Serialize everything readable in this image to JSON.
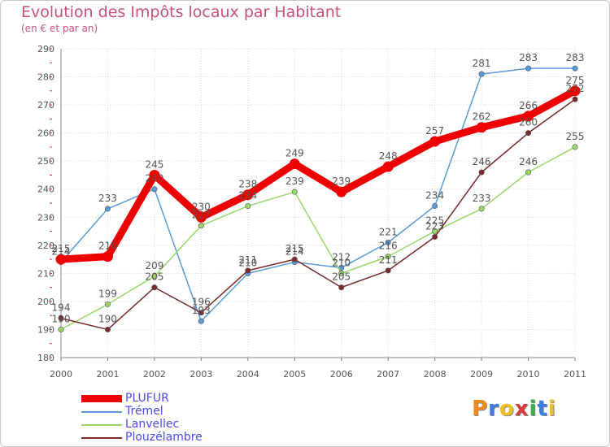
{
  "title": "Evolution des Impôts locaux par Habitant",
  "subtitle": "(en € et par an)",
  "logo": {
    "text": "Proxiti",
    "letter_colors": [
      "#f08a1c",
      "#3a7de0",
      "#f0c020",
      "#e03a3a",
      "#3ab04a",
      "#3a7de0",
      "#f0c020"
    ]
  },
  "chart_data": {
    "type": "line",
    "title": "Evolution des Impôts locaux par Habitant",
    "subtitle": "(en € et par an)",
    "xlabel": "",
    "ylabel": "",
    "x": [
      "2000",
      "2001",
      "2002",
      "2003",
      "2004",
      "2005",
      "2006",
      "2007",
      "2008",
      "2009",
      "2010",
      "2011"
    ],
    "ylim": [
      180,
      290
    ],
    "yticks": [
      "180",
      "190",
      "200",
      "210",
      "220",
      "230",
      "240",
      "250",
      "260",
      "270",
      "280",
      "290"
    ],
    "grid": true,
    "legend_position": "bottom-left",
    "series": [
      {
        "name": "PLUFUR",
        "color": "#ee0000",
        "values": [
          215,
          216,
          245,
          230,
          238,
          249,
          239,
          248,
          257,
          262,
          266,
          275
        ],
        "labels": [
          "215",
          "216",
          "245",
          "230",
          "238",
          "249",
          "239",
          "248",
          "257",
          "262",
          "266",
          "275"
        ]
      },
      {
        "name": "Trémel",
        "color": "#5a9ad8",
        "values": [
          214,
          233,
          240,
          193,
          210,
          214,
          212,
          221,
          234,
          281,
          283,
          283
        ],
        "labels": [
          "214",
          "233",
          "240",
          "193",
          "210",
          "214",
          "212",
          "221",
          "234",
          "281",
          "283",
          "283"
        ]
      },
      {
        "name": "Lanvellec",
        "color": "#9ad86a",
        "values": [
          190,
          199,
          209,
          227,
          234,
          239,
          210,
          216,
          225,
          233,
          246,
          255
        ],
        "labels": [
          "190",
          "199",
          "209",
          "227",
          "234",
          "239",
          "210",
          "216",
          "225",
          "233",
          "246",
          "255"
        ]
      },
      {
        "name": "Plouzélambre",
        "color": "#7a2a2a",
        "values": [
          194,
          190,
          205,
          196,
          211,
          215,
          205,
          211,
          223,
          246,
          260,
          272
        ],
        "labels": [
          "194",
          "190",
          "205",
          "196",
          "211",
          "215",
          "205",
          "211",
          "223",
          "246",
          "260",
          "272"
        ]
      }
    ]
  }
}
